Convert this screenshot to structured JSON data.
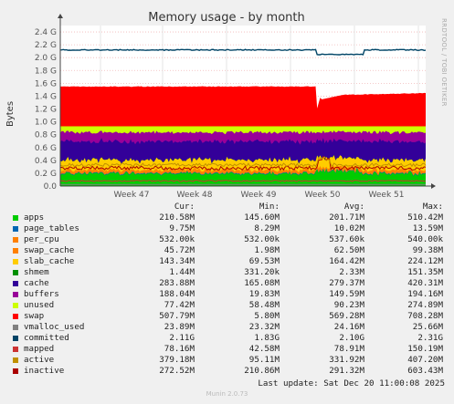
{
  "chart_data": {
    "type": "area",
    "title": "Memory usage - by month",
    "ylabel": "Bytes",
    "side_label": "RRDTOOL / TOBI OETIKER",
    "y_ticks": [
      "0.0",
      "0.2 G",
      "0.4 G",
      "0.6 G",
      "0.8 G",
      "1.0 G",
      "1.2 G",
      "1.4 G",
      "1.6 G",
      "1.8 G",
      "2.0 G",
      "2.2 G",
      "2.4 G"
    ],
    "ylim": [
      0,
      2.5
    ],
    "y_unit": "G",
    "x_ticks": [
      "Week 47",
      "Week 48",
      "Week 49",
      "Week 50",
      "Week 51"
    ],
    "grid": true,
    "stack_order": [
      "apps",
      "page_tables",
      "per_cpu",
      "swap_cache",
      "slab_cache",
      "shmem",
      "cache",
      "buffers",
      "unused"
    ],
    "series": [
      {
        "name": "apps",
        "color": "#00cc00",
        "cur": "210.58M",
        "min": "145.60M",
        "avg": "201.71M",
        "max": "510.42M"
      },
      {
        "name": "page_tables",
        "color": "#0066b3",
        "cur": "9.75M",
        "min": "8.29M",
        "avg": "10.02M",
        "max": "13.59M"
      },
      {
        "name": "per_cpu",
        "color": "#ff8000",
        "cur": "532.00k",
        "min": "532.00k",
        "avg": "537.60k",
        "max": "540.00k"
      },
      {
        "name": "swap_cache",
        "color": "#ff8000",
        "cur": "45.72M",
        "min": "1.98M",
        "avg": "62.50M",
        "max": "99.38M"
      },
      {
        "name": "slab_cache",
        "color": "#ffcc00",
        "cur": "143.34M",
        "min": "69.53M",
        "avg": "164.42M",
        "max": "224.12M"
      },
      {
        "name": "shmem",
        "color": "#008f00",
        "cur": "1.44M",
        "min": "331.20k",
        "avg": "2.33M",
        "max": "151.35M"
      },
      {
        "name": "cache",
        "color": "#330099",
        "cur": "283.88M",
        "min": "165.08M",
        "avg": "279.37M",
        "max": "420.31M"
      },
      {
        "name": "buffers",
        "color": "#990099",
        "cur": "188.04M",
        "min": "19.83M",
        "avg": "149.59M",
        "max": "194.16M"
      },
      {
        "name": "unused",
        "color": "#ccff00",
        "cur": "77.42M",
        "min": "58.48M",
        "avg": "90.23M",
        "max": "274.89M"
      },
      {
        "name": "swap",
        "color": "#ff0000",
        "cur": "507.79M",
        "min": "5.80M",
        "avg": "569.28M",
        "max": "708.28M"
      },
      {
        "name": "vmalloc_used",
        "color": "#808080",
        "cur": "23.89M",
        "min": "23.32M",
        "avg": "24.16M",
        "max": "25.66M"
      },
      {
        "name": "committed",
        "color": "#004466",
        "cur": "2.11G",
        "min": "1.83G",
        "avg": "2.10G",
        "max": "2.31G"
      },
      {
        "name": "mapped",
        "color": "#cc3333",
        "cur": "78.16M",
        "min": "42.58M",
        "avg": "78.91M",
        "max": "150.19M"
      },
      {
        "name": "active",
        "color": "#c09000",
        "cur": "379.18M",
        "min": "95.11M",
        "avg": "331.92M",
        "max": "407.20M"
      },
      {
        "name": "inactive",
        "color": "#aa0000",
        "cur": "272.52M",
        "min": "210.86M",
        "avg": "291.32M",
        "max": "603.43M"
      }
    ]
  },
  "legend_headers": {
    "cur": "Cur:",
    "min": "Min:",
    "avg": "Avg:",
    "max": "Max:"
  },
  "last_update": "Last update: Sat Dec 20 11:00:08 2025",
  "footer": "Munin 2.0.73"
}
